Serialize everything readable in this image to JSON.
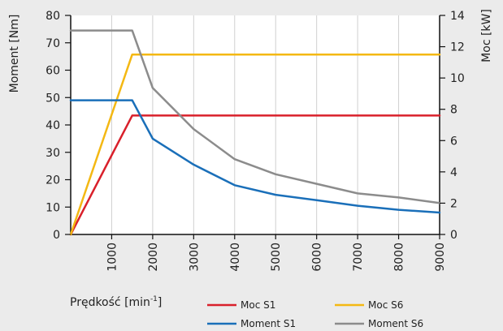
{
  "chart_data": {
    "type": "line",
    "xlabel": "Prędkość [min",
    "xlabel_sup": "-1",
    "xlabel_end": "]",
    "ylabel_left": "Moment  [Nm]",
    "ylabel_right": "Moc [kW]",
    "x_range": [
      0,
      9000
    ],
    "y_left_range": [
      0,
      80
    ],
    "y_right_range": [
      0,
      14
    ],
    "x_ticks": [
      1000,
      2000,
      3000,
      4000,
      5000,
      6000,
      7000,
      8000,
      9000
    ],
    "x_tick_labels": [
      "1000",
      "2000",
      "3000",
      "4000",
      "5000",
      "6000",
      "7000",
      "8000",
      "9000"
    ],
    "y_left_ticks": [
      0,
      10,
      20,
      30,
      40,
      50,
      60,
      70,
      80
    ],
    "y_left_tick_labels": [
      "0",
      "10",
      "20",
      "30",
      "40",
      "50",
      "60",
      "70",
      "80"
    ],
    "y_right_ticks": [
      0,
      2,
      4,
      6,
      8,
      10,
      12,
      14
    ],
    "y_right_tick_labels": [
      "0",
      "2",
      "4",
      "6",
      "8",
      "10",
      "12",
      "14"
    ],
    "grid": "vertical",
    "legend_position": "bottom",
    "series": [
      {
        "name": "Moc S1",
        "axis": "right",
        "color": "#d9202b",
        "points": [
          [
            0,
            0
          ],
          [
            1500,
            7.6
          ],
          [
            9000,
            7.6
          ]
        ]
      },
      {
        "name": "Moc S6",
        "axis": "right",
        "color": "#f4b813",
        "points": [
          [
            0,
            0
          ],
          [
            1500,
            11.5
          ],
          [
            9000,
            11.5
          ]
        ]
      },
      {
        "name": "Moment S1",
        "axis": "left",
        "color": "#1a6fb9",
        "points": [
          [
            0,
            49
          ],
          [
            1500,
            49
          ],
          [
            2000,
            35
          ],
          [
            3000,
            25.5
          ],
          [
            4000,
            18
          ],
          [
            5000,
            14.5
          ],
          [
            6000,
            12.5
          ],
          [
            7000,
            10.5
          ],
          [
            8000,
            9
          ],
          [
            9000,
            8
          ]
        ]
      },
      {
        "name": "Moment S6",
        "axis": "left",
        "color": "#8c8c8c",
        "points": [
          [
            0,
            74.5
          ],
          [
            1500,
            74.5
          ],
          [
            2000,
            53.5
          ],
          [
            3000,
            38.5
          ],
          [
            4000,
            27.5
          ],
          [
            5000,
            22
          ],
          [
            6000,
            18.5
          ],
          [
            7000,
            15
          ],
          [
            8000,
            13.5
          ],
          [
            9000,
            11.5
          ]
        ]
      }
    ]
  }
}
